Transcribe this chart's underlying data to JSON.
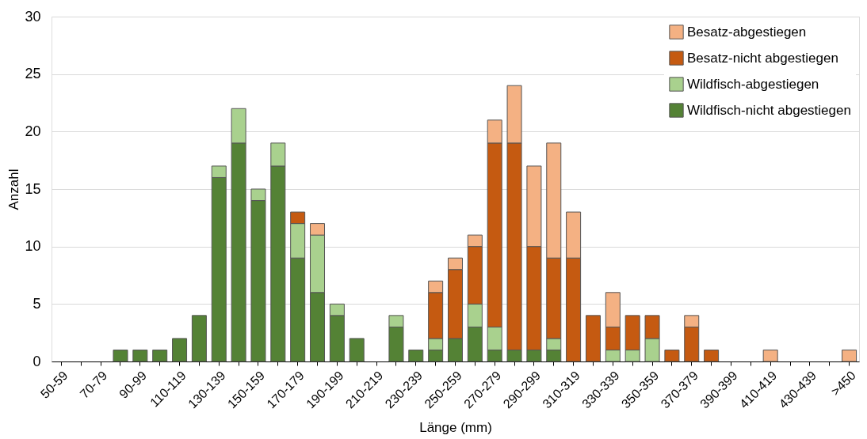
{
  "chart_data": {
    "type": "bar",
    "stacked": true,
    "xlabel": "Länge (mm)",
    "ylabel": "Anzahl",
    "categories": [
      "50-59",
      null,
      "70-79",
      null,
      "90-99",
      null,
      "110-119",
      null,
      "130-139",
      null,
      "150-159",
      null,
      "170-179",
      null,
      "190-199",
      null,
      "210-219",
      null,
      "230-239",
      null,
      "250-259",
      null,
      "270-279",
      null,
      "290-299",
      null,
      "310-319",
      null,
      "330-339",
      null,
      "350-359",
      null,
      "370-379",
      null,
      "390-399",
      null,
      "410-419",
      null,
      "430-439",
      null,
      ">450"
    ],
    "series": [
      {
        "name": "Wildfisch-nicht abgestiegen",
        "color": "#548235",
        "values": [
          0,
          0,
          0,
          1,
          1,
          1,
          2,
          4,
          16,
          19,
          14,
          17,
          9,
          6,
          4,
          2,
          0,
          3,
          1,
          1,
          2,
          3,
          1,
          1,
          1,
          1,
          0,
          0,
          0,
          0,
          0,
          0,
          0,
          0,
          0,
          0,
          0,
          0,
          0,
          0,
          0
        ]
      },
      {
        "name": "Wildfisch-abgestiegen",
        "color": "#a9d18e",
        "values": [
          0,
          0,
          0,
          0,
          0,
          0,
          0,
          0,
          1,
          3,
          1,
          2,
          3,
          5,
          1,
          0,
          0,
          1,
          0,
          1,
          0,
          2,
          2,
          0,
          0,
          1,
          0,
          0,
          1,
          1,
          2,
          0,
          0,
          0,
          0,
          0,
          0,
          0,
          0,
          0,
          0
        ]
      },
      {
        "name": "Besatz-nicht abgestiegen",
        "color": "#c55a11",
        "values": [
          0,
          0,
          0,
          0,
          0,
          0,
          0,
          0,
          0,
          0,
          0,
          0,
          1,
          0,
          0,
          0,
          0,
          0,
          0,
          4,
          6,
          5,
          16,
          18,
          9,
          7,
          9,
          4,
          2,
          3,
          2,
          1,
          3,
          1,
          0,
          0,
          0,
          0,
          0,
          0,
          0
        ]
      },
      {
        "name": "Besatz-abgestiegen",
        "color": "#f4b183",
        "values": [
          0,
          0,
          0,
          0,
          0,
          0,
          0,
          0,
          0,
          0,
          0,
          0,
          0,
          1,
          0,
          0,
          0,
          0,
          0,
          1,
          1,
          1,
          2,
          5,
          7,
          10,
          4,
          0,
          3,
          0,
          0,
          0,
          1,
          0,
          0,
          0,
          1,
          0,
          0,
          0,
          1
        ]
      }
    ],
    "ylim": [
      0,
      30
    ],
    "yticks": [
      0,
      5,
      10,
      15,
      20,
      25,
      30
    ],
    "grid": "y",
    "legend": "top right"
  }
}
